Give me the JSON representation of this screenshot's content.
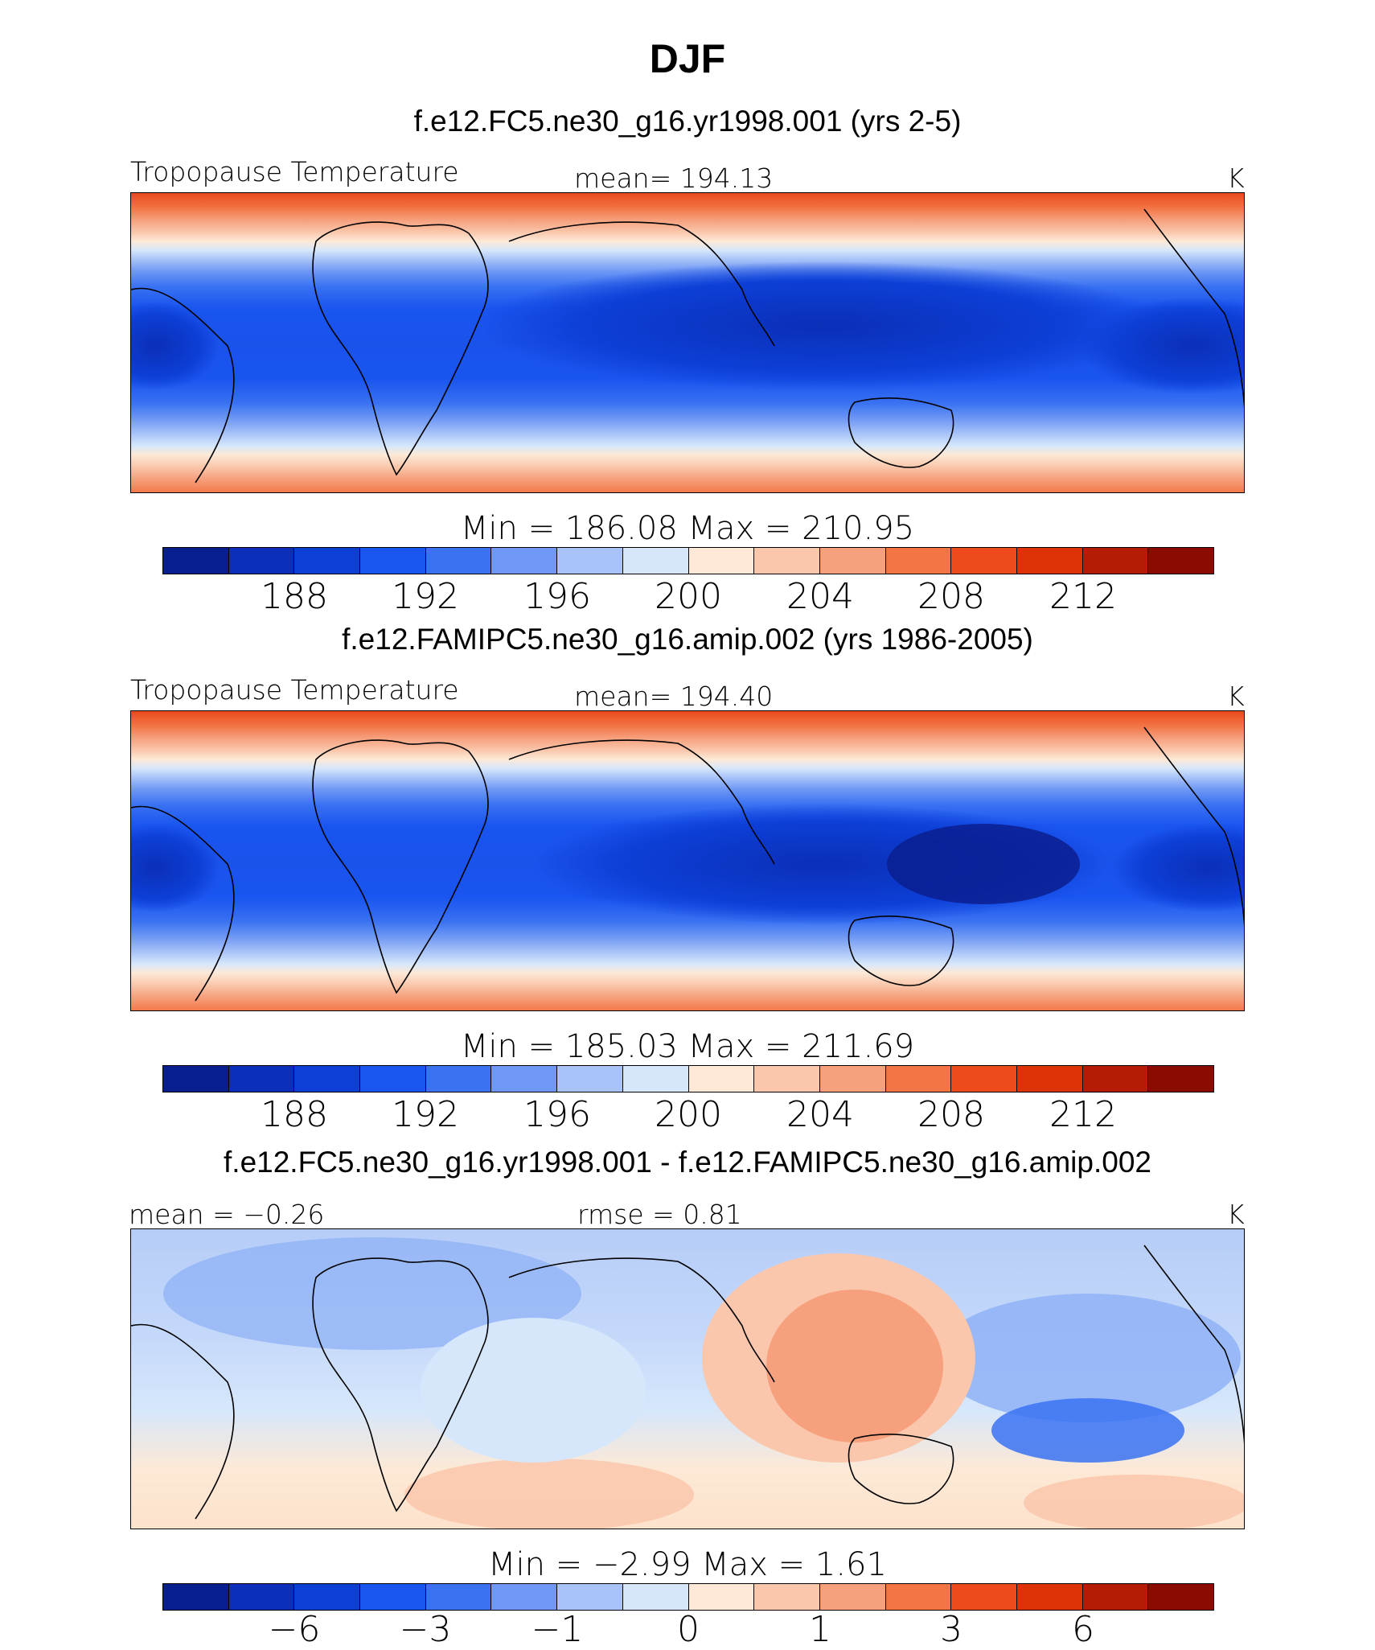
{
  "figure": {
    "title": "DJF"
  },
  "colorbar_colors": [
    "#0a1f8f",
    "#0b2fb8",
    "#0d3fd6",
    "#1a55ef",
    "#3a72f2",
    "#6f98f5",
    "#a8c3f8",
    "#d6e7fb",
    "#fde9d6",
    "#fac7ac",
    "#f6a07d",
    "#f37545",
    "#ee4a1c",
    "#de3207",
    "#b51b05",
    "#8a0b02"
  ],
  "panels": [
    {
      "title": "f.e12.FC5.ne30_g16.yr1998.001 (yrs 2-5)",
      "left_label": "Tropopause Temperature",
      "center_label": "mean=  194.13",
      "right_label": "K",
      "minmax_label": "Min  =  186.08  Max  =  210.95",
      "ticks": [
        "188",
        "192",
        "196",
        "200",
        "204",
        "208",
        "212"
      ]
    },
    {
      "title": "f.e12.FAMIPC5.ne30_g16.amip.002 (yrs 1986-2005)",
      "left_label": "Tropopause Temperature",
      "center_label": "mean=  194.40",
      "right_label": "K",
      "minmax_label": "Min  =  185.03  Max  =  211.69",
      "ticks": [
        "188",
        "192",
        "196",
        "200",
        "204",
        "208",
        "212"
      ]
    },
    {
      "title": "f.e12.FC5.ne30_g16.yr1998.001 - f.e12.FAMIPC5.ne30_g16.amip.002",
      "left_label": "mean  =    −0.26",
      "center_label": "rmse  =      0.81",
      "right_label": "K",
      "minmax_label": "Min  =     −2.99  Max  =       1.61",
      "ticks": [
        "−6",
        "−3",
        "−1",
        "0",
        "1",
        "3",
        "6"
      ]
    }
  ],
  "chart_data": [
    {
      "type": "heatmap",
      "title": "f.e12.FC5.ne30_g16.yr1998.001 (yrs 2-5)",
      "variable": "Tropopause Temperature",
      "units": "K",
      "mean": 194.13,
      "min": 186.08,
      "max": 210.95,
      "colorbar_ticks": [
        188,
        192,
        196,
        200,
        204,
        208,
        212
      ]
    },
    {
      "type": "heatmap",
      "title": "f.e12.FAMIPC5.ne30_g16.amip.002 (yrs 1986-2005)",
      "variable": "Tropopause Temperature",
      "units": "K",
      "mean": 194.4,
      "min": 185.03,
      "max": 211.69,
      "colorbar_ticks": [
        188,
        192,
        196,
        200,
        204,
        208,
        212
      ]
    },
    {
      "type": "heatmap",
      "title": "f.e12.FC5.ne30_g16.yr1998.001 - f.e12.FAMIPC5.ne30_g16.amip.002",
      "units": "K",
      "mean": -0.26,
      "rmse": 0.81,
      "min": -2.99,
      "max": 1.61,
      "colorbar_ticks": [
        -6,
        -3,
        -1,
        0,
        1,
        3,
        6
      ]
    }
  ]
}
